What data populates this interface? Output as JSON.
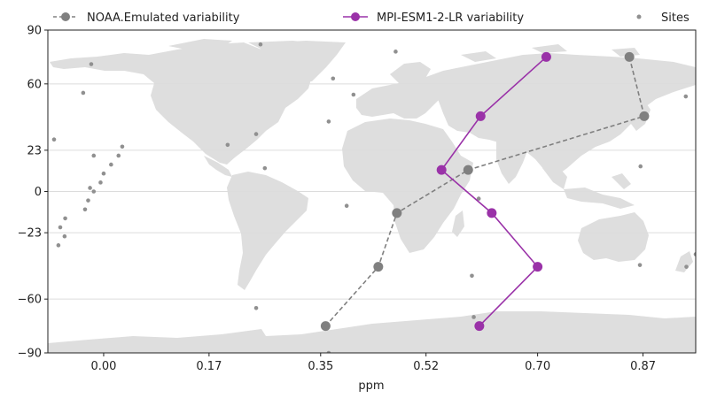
{
  "chart_data": {
    "type": "line",
    "title": "",
    "xlabel": "ppm",
    "ylabel": "",
    "xlim": [
      -0.09,
      0.955
    ],
    "ylim": [
      -90,
      90
    ],
    "xticks": [
      0.0,
      0.17,
      0.35,
      0.52,
      0.7,
      0.87
    ],
    "xtick_labels": [
      "0.00",
      "0.17",
      "0.35",
      "0.52",
      "0.70",
      "0.87"
    ],
    "yticks": [
      90,
      60,
      23,
      0,
      -23,
      -60,
      -90
    ],
    "ytick_labels": [
      "90",
      "60",
      "23",
      "0",
      "−23",
      "−60",
      "−90"
    ],
    "grid": "horizontal",
    "legend_position": "top",
    "background": "world-map",
    "colors": {
      "noaa": "#808080",
      "mpi": "#9a32a8",
      "sites": "#909090",
      "land": "#dedede",
      "grid": "#dcdcdc"
    },
    "series": [
      {
        "name": "NOAA.Emulated variability",
        "style": "dashed-circle",
        "color": "#808080",
        "points": [
          {
            "lat": 75,
            "x": 0.848
          },
          {
            "lat": 42,
            "x": 0.872
          },
          {
            "lat": 12,
            "x": 0.588
          },
          {
            "lat": -12,
            "x": 0.473
          },
          {
            "lat": -42,
            "x": 0.443
          },
          {
            "lat": -75,
            "x": 0.358
          }
        ]
      },
      {
        "name": "MPI-ESM1-2-LR variability",
        "style": "solid-circle",
        "color": "#9a32a8",
        "points": [
          {
            "lat": 75,
            "x": 0.714
          },
          {
            "lat": 42,
            "x": 0.608
          },
          {
            "lat": 12,
            "x": 0.545
          },
          {
            "lat": -12,
            "x": 0.626
          },
          {
            "lat": -42,
            "x": 0.7
          },
          {
            "lat": -75,
            "x": 0.606
          }
        ]
      }
    ],
    "sites": {
      "name": "Sites",
      "color": "#909090",
      "points": [
        [
          -0.08,
          29
        ],
        [
          -0.073,
          -30
        ],
        [
          -0.07,
          -20
        ],
        [
          -0.062,
          -15
        ],
        [
          -0.063,
          -25
        ],
        [
          -0.033,
          55
        ],
        [
          -0.02,
          71
        ],
        [
          -0.03,
          -10
        ],
        [
          -0.025,
          -5
        ],
        [
          -0.022,
          2
        ],
        [
          -0.016,
          0
        ],
        [
          -0.005,
          5
        ],
        [
          0.0,
          10
        ],
        [
          0.012,
          15
        ],
        [
          -0.016,
          20
        ],
        [
          0.024,
          20
        ],
        [
          0.03,
          25
        ],
        [
          0.2,
          26
        ],
        [
          0.246,
          32
        ],
        [
          0.26,
          13
        ],
        [
          0.253,
          82
        ],
        [
          0.37,
          63
        ],
        [
          0.363,
          39
        ],
        [
          0.403,
          54
        ],
        [
          0.471,
          78
        ],
        [
          0.392,
          -8
        ],
        [
          0.246,
          -65
        ],
        [
          0.594,
          -47
        ],
        [
          0.597,
          -70
        ],
        [
          0.605,
          -4
        ],
        [
          0.866,
          14
        ],
        [
          0.939,
          53
        ],
        [
          0.865,
          -41
        ],
        [
          0.94,
          -42
        ],
        [
          0.955,
          -35
        ],
        [
          0.363,
          -90
        ]
      ]
    }
  },
  "legend": {
    "noaa_label": "NOAA.Emulated variability",
    "mpi_label": "MPI-ESM1-2-LR variability",
    "sites_label": "Sites"
  }
}
